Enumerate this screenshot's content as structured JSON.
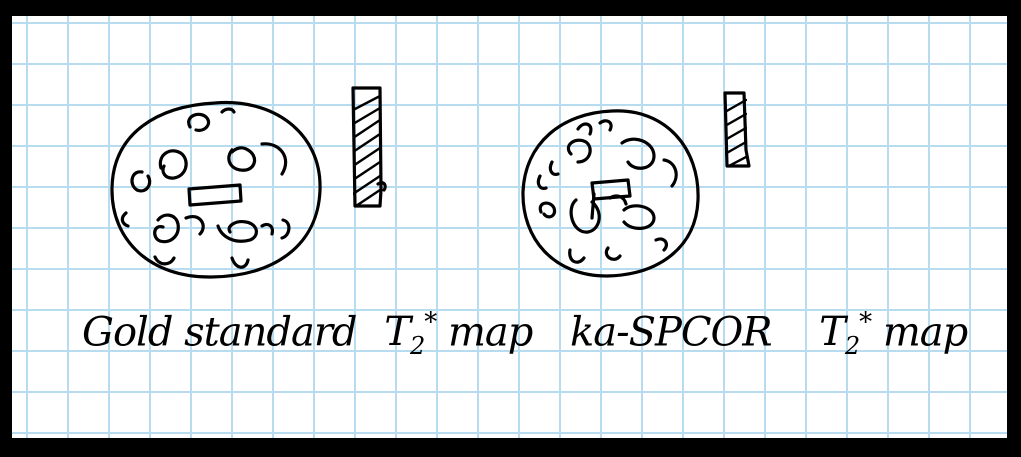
{
  "left_panel": {
    "caption_main": "Gold standard",
    "caption_symbol": "T",
    "caption_subscript": "2",
    "caption_superscript": "*",
    "caption_tail": "map"
  },
  "right_panel": {
    "caption_main": "ka-SPCOR",
    "caption_symbol": "T",
    "caption_subscript": "2",
    "caption_superscript": "*",
    "caption_tail": "map"
  },
  "colors": {
    "grid": "#b7dcf0",
    "ink": "#000000",
    "paper": "#ffffff",
    "frame": "#000000"
  }
}
